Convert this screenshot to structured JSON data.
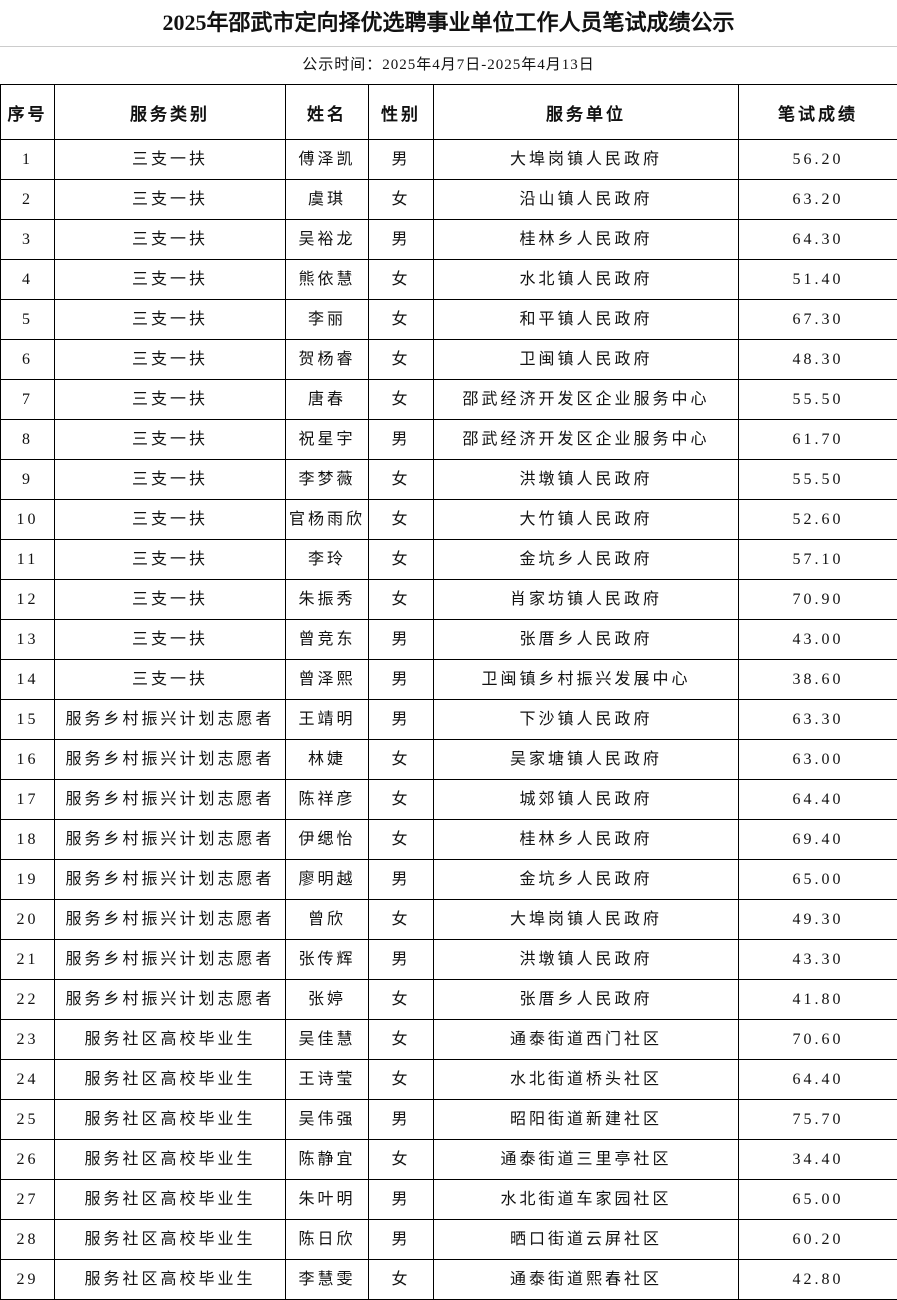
{
  "title": "2025年邵武市定向择优选聘事业单位工作人员笔试成绩公示",
  "subtitle": "公示时间：2025年4月7日-2025年4月13日",
  "headers": [
    "序号",
    "服务类别",
    "姓名",
    "性别",
    "服务单位",
    "笔试成绩"
  ],
  "rows": [
    [
      "1",
      "三支一扶",
      "傅泽凯",
      "男",
      "大埠岗镇人民政府",
      "56.20"
    ],
    [
      "2",
      "三支一扶",
      "虞琪",
      "女",
      "沿山镇人民政府",
      "63.20"
    ],
    [
      "3",
      "三支一扶",
      "吴裕龙",
      "男",
      "桂林乡人民政府",
      "64.30"
    ],
    [
      "4",
      "三支一扶",
      "熊依慧",
      "女",
      "水北镇人民政府",
      "51.40"
    ],
    [
      "5",
      "三支一扶",
      "李丽",
      "女",
      "和平镇人民政府",
      "67.30"
    ],
    [
      "6",
      "三支一扶",
      "贺杨睿",
      "女",
      "卫闽镇人民政府",
      "48.30"
    ],
    [
      "7",
      "三支一扶",
      "唐春",
      "女",
      "邵武经济开发区企业服务中心",
      "55.50"
    ],
    [
      "8",
      "三支一扶",
      "祝星宇",
      "男",
      "邵武经济开发区企业服务中心",
      "61.70"
    ],
    [
      "9",
      "三支一扶",
      "李梦薇",
      "女",
      "洪墩镇人民政府",
      "55.50"
    ],
    [
      "10",
      "三支一扶",
      "官杨雨欣",
      "女",
      "大竹镇人民政府",
      "52.60"
    ],
    [
      "11",
      "三支一扶",
      "李玲",
      "女",
      "金坑乡人民政府",
      "57.10"
    ],
    [
      "12",
      "三支一扶",
      "朱振秀",
      "女",
      "肖家坊镇人民政府",
      "70.90"
    ],
    [
      "13",
      "三支一扶",
      "曾竞东",
      "男",
      "张厝乡人民政府",
      "43.00"
    ],
    [
      "14",
      "三支一扶",
      "曾泽熙",
      "男",
      "卫闽镇乡村振兴发展中心",
      "38.60"
    ],
    [
      "15",
      "服务乡村振兴计划志愿者",
      "王靖明",
      "男",
      "下沙镇人民政府",
      "63.30"
    ],
    [
      "16",
      "服务乡村振兴计划志愿者",
      "林婕",
      "女",
      "吴家塘镇人民政府",
      "63.00"
    ],
    [
      "17",
      "服务乡村振兴计划志愿者",
      "陈祥彦",
      "女",
      "城郊镇人民政府",
      "64.40"
    ],
    [
      "18",
      "服务乡村振兴计划志愿者",
      "伊缌怡",
      "女",
      "桂林乡人民政府",
      "69.40"
    ],
    [
      "19",
      "服务乡村振兴计划志愿者",
      "廖明越",
      "男",
      "金坑乡人民政府",
      "65.00"
    ],
    [
      "20",
      "服务乡村振兴计划志愿者",
      "曾欣",
      "女",
      "大埠岗镇人民政府",
      "49.30"
    ],
    [
      "21",
      "服务乡村振兴计划志愿者",
      "张传辉",
      "男",
      "洪墩镇人民政府",
      "43.30"
    ],
    [
      "22",
      "服务乡村振兴计划志愿者",
      "张婷",
      "女",
      "张厝乡人民政府",
      "41.80"
    ],
    [
      "23",
      "服务社区高校毕业生",
      "吴佳慧",
      "女",
      "通泰街道西门社区",
      "70.60"
    ],
    [
      "24",
      "服务社区高校毕业生",
      "王诗莹",
      "女",
      "水北街道桥头社区",
      "64.40"
    ],
    [
      "25",
      "服务社区高校毕业生",
      "吴伟强",
      "男",
      "昭阳街道新建社区",
      "75.70"
    ],
    [
      "26",
      "服务社区高校毕业生",
      "陈静宜",
      "女",
      "通泰街道三里亭社区",
      "34.40"
    ],
    [
      "27",
      "服务社区高校毕业生",
      "朱叶明",
      "男",
      "水北街道车家园社区",
      "65.00"
    ],
    [
      "28",
      "服务社区高校毕业生",
      "陈日欣",
      "男",
      "晒口街道云屏社区",
      "60.20"
    ],
    [
      "29",
      "服务社区高校毕业生",
      "李慧雯",
      "女",
      "通泰街道熙春社区",
      "42.80"
    ]
  ]
}
